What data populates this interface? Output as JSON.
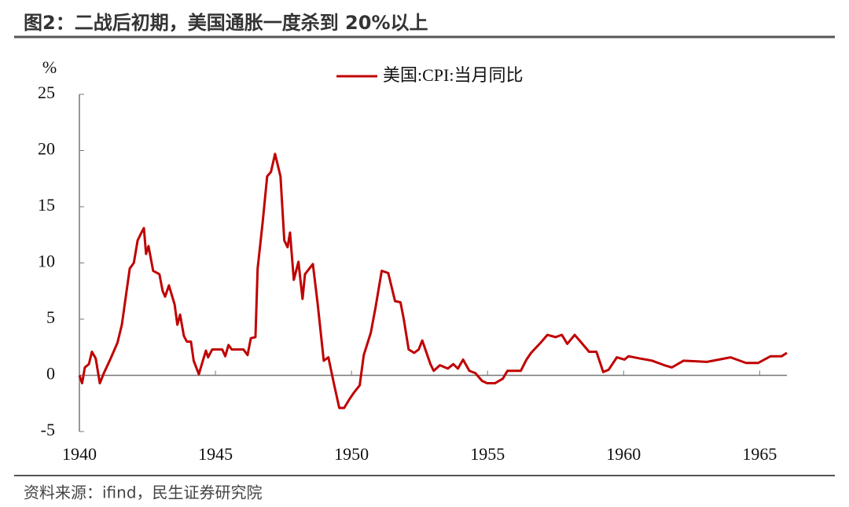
{
  "chart_data": {
    "type": "line",
    "title": "图2：二战后初期，美国通胀一度杀到 20%以上",
    "source": "资料来源：ifind，民生证券研究院",
    "y_unit": "%",
    "xlim": [
      1940,
      1966
    ],
    "xticks": [
      1940,
      1945,
      1950,
      1955,
      1960,
      1965
    ],
    "ylim": [
      -5,
      25
    ],
    "yticks": [
      -5,
      0,
      5,
      10,
      15,
      20,
      25
    ],
    "grid": false,
    "legend": "top",
    "x": [
      1940.0,
      1940.1,
      1940.2,
      1940.35,
      1940.46,
      1940.6,
      1940.75,
      1940.9,
      1941.13,
      1941.4,
      1941.56,
      1941.85,
      1942.0,
      1942.14,
      1942.28,
      1942.37,
      1942.45,
      1942.54,
      1942.71,
      1942.94,
      1943.06,
      1943.15,
      1943.29,
      1943.5,
      1943.6,
      1943.7,
      1943.84,
      1943.95,
      1944.1,
      1944.2,
      1944.39,
      1944.5,
      1944.65,
      1944.73,
      1944.88,
      1945.25,
      1945.36,
      1945.48,
      1945.6,
      1946.03,
      1946.18,
      1946.3,
      1946.47,
      1946.55,
      1946.73,
      1946.9,
      1947.04,
      1947.19,
      1947.39,
      1947.53,
      1947.65,
      1947.74,
      1947.88,
      1948.05,
      1948.2,
      1948.29,
      1948.58,
      1948.75,
      1948.98,
      1949.15,
      1949.35,
      1949.55,
      1949.73,
      1949.93,
      1950.1,
      1950.3,
      1950.45,
      1950.71,
      1950.88,
      1951.11,
      1951.35,
      1951.6,
      1951.8,
      1951.92,
      1952.1,
      1952.3,
      1952.47,
      1952.6,
      1952.9,
      1953.02,
      1953.25,
      1953.54,
      1953.74,
      1953.91,
      1954.1,
      1954.33,
      1954.55,
      1954.8,
      1954.98,
      1955.27,
      1955.56,
      1955.73,
      1956.22,
      1956.43,
      1956.6,
      1956.95,
      1957.2,
      1957.5,
      1957.73,
      1957.93,
      1958.2,
      1958.45,
      1958.73,
      1959.0,
      1959.25,
      1959.45,
      1959.75,
      1960.03,
      1960.18,
      1960.6,
      1961.05,
      1961.5,
      1961.77,
      1962.2,
      1963.06,
      1963.93,
      1964.5,
      1964.94,
      1965.4,
      1965.81,
      1966.0
    ],
    "series": [
      {
        "name": "美国:CPI:当月同比",
        "color": "#c00000",
        "values": [
          0.0,
          -0.7,
          0.7,
          1.0,
          2.1,
          1.5,
          -0.7,
          0.2,
          1.4,
          2.9,
          4.5,
          9.5,
          10.0,
          12.0,
          12.7,
          13.1,
          10.8,
          11.5,
          9.3,
          9.0,
          7.5,
          7.0,
          8.0,
          6.3,
          4.5,
          5.4,
          3.5,
          3.0,
          3.0,
          1.3,
          0.1,
          1.0,
          2.2,
          1.6,
          2.3,
          2.3,
          1.7,
          2.7,
          2.3,
          2.3,
          1.8,
          3.3,
          3.4,
          9.5,
          13.5,
          17.7,
          18.1,
          19.7,
          17.7,
          12.0,
          11.4,
          12.7,
          8.5,
          10.1,
          6.8,
          9.0,
          9.9,
          6.5,
          1.3,
          1.6,
          -0.7,
          -2.9,
          -2.9,
          -2.1,
          -1.5,
          -0.9,
          1.8,
          3.8,
          6.0,
          9.3,
          9.1,
          6.6,
          6.5,
          5.0,
          2.3,
          2.0,
          2.3,
          3.1,
          1.0,
          0.4,
          0.9,
          0.6,
          1.0,
          0.6,
          1.4,
          0.4,
          0.2,
          -0.5,
          -0.7,
          -0.7,
          -0.3,
          0.4,
          0.4,
          1.4,
          2.0,
          2.9,
          3.6,
          3.4,
          3.6,
          2.8,
          3.6,
          2.9,
          2.1,
          2.1,
          0.3,
          0.5,
          1.6,
          1.4,
          1.7,
          1.5,
          1.3,
          0.9,
          0.7,
          1.3,
          1.2,
          1.6,
          1.1,
          1.1,
          1.7,
          1.7,
          2.0
        ]
      }
    ]
  }
}
